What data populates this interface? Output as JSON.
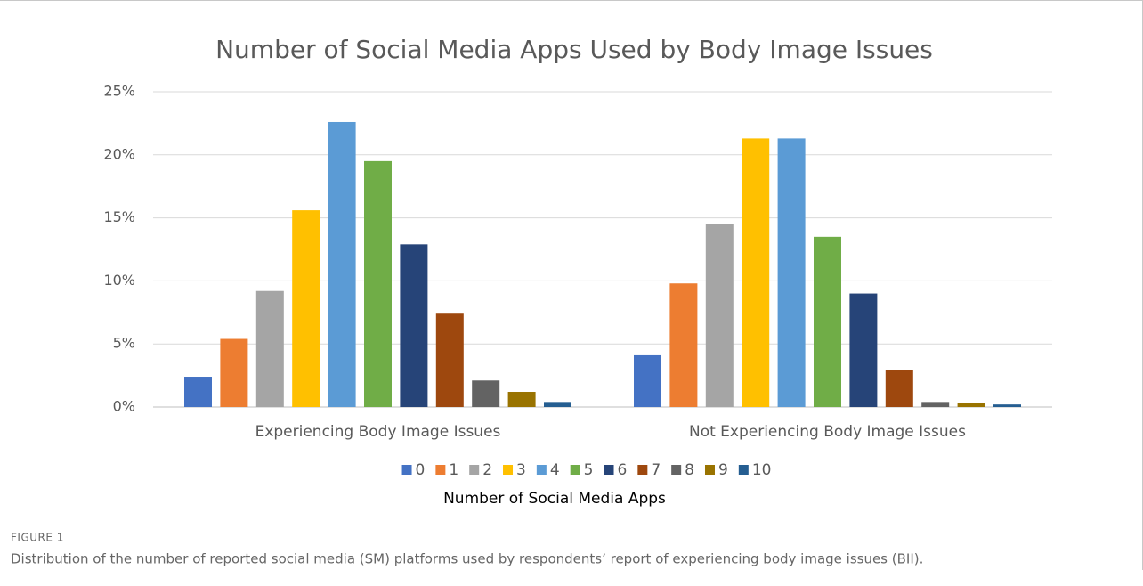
{
  "chart_data": {
    "type": "bar",
    "title": "Number of Social Media Apps Used by Body Image Issues",
    "categories": [
      "Experiencing Body Image Issues",
      "Not Experiencing Body Image Issues"
    ],
    "series": [
      {
        "name": "0",
        "color": "#4472c4",
        "values": [
          2.4,
          4.1
        ]
      },
      {
        "name": "1",
        "color": "#ed7d31",
        "values": [
          5.4,
          9.8
        ]
      },
      {
        "name": "2",
        "color": "#a5a5a5",
        "values": [
          9.2,
          14.5
        ]
      },
      {
        "name": "3",
        "color": "#ffc000",
        "values": [
          15.6,
          21.3
        ]
      },
      {
        "name": "4",
        "color": "#5b9bd5",
        "values": [
          22.6,
          21.3
        ]
      },
      {
        "name": "5",
        "color": "#70ad47",
        "values": [
          19.5,
          13.5
        ]
      },
      {
        "name": "6",
        "color": "#264478",
        "values": [
          12.9,
          9.0
        ]
      },
      {
        "name": "7",
        "color": "#9e480e",
        "values": [
          7.4,
          2.9
        ]
      },
      {
        "name": "8",
        "color": "#636363",
        "values": [
          2.1,
          0.4
        ]
      },
      {
        "name": "9",
        "color": "#997300",
        "values": [
          1.2,
          0.3
        ]
      },
      {
        "name": "10",
        "color": "#255e91",
        "values": [
          0.4,
          0.2
        ]
      }
    ],
    "legend_title": "Number of Social Media Apps",
    "legend": "bottom",
    "ylim": [
      0,
      25
    ],
    "yticks": [
      {
        "value": 0,
        "label": "0%"
      },
      {
        "value": 5,
        "label": "5%"
      },
      {
        "value": 10,
        "label": "10%"
      },
      {
        "value": 15,
        "label": "15%"
      },
      {
        "value": 20,
        "label": "20%"
      },
      {
        "value": 25,
        "label": "25%"
      }
    ],
    "grid": true
  },
  "figure": {
    "label": "FIGURE 1",
    "caption": "Distribution of the number of reported social media (SM) platforms used by respondents’ report of experiencing body image issues (BII)."
  }
}
